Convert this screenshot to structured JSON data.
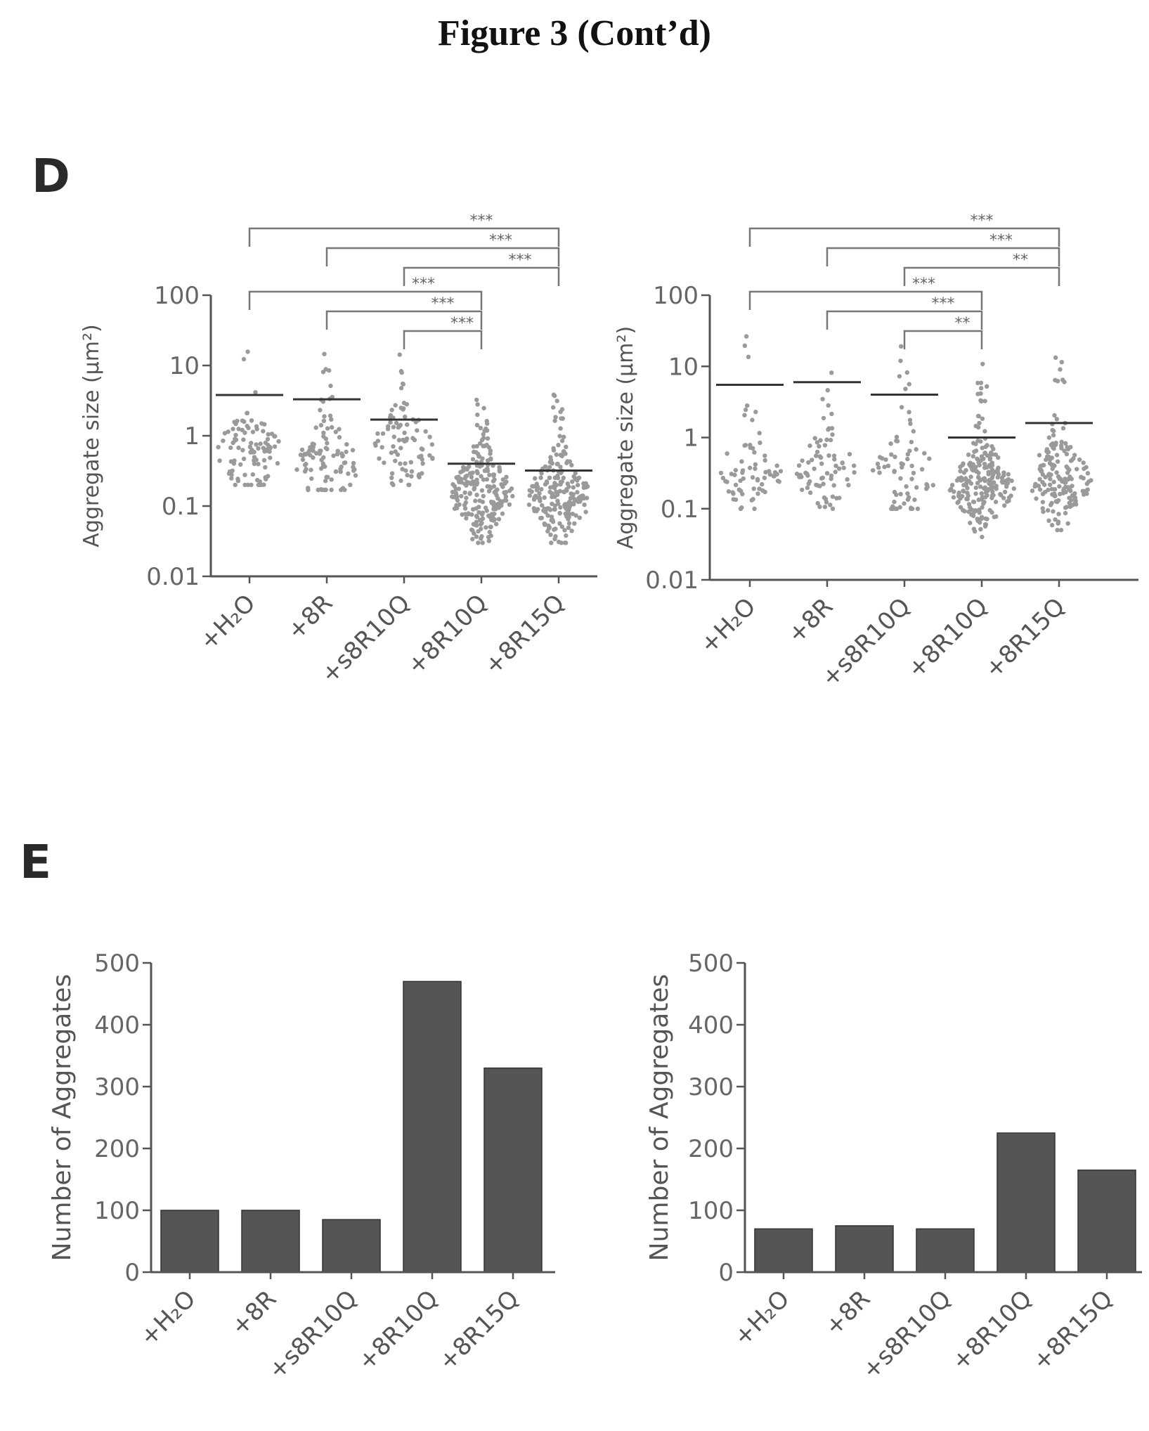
{
  "title": "Figure 3 (Cont’d)",
  "panel_labels": {
    "d": "D",
    "e": "E"
  },
  "chart_data": [
    {
      "id": "d-left",
      "type": "scatter",
      "panel": "D",
      "ylabel": "Aggregate size (µm²)",
      "yscale": "log",
      "ylim": [
        0.01,
        100
      ],
      "yticks": [
        {
          "value": 0.01,
          "label": "0.01"
        },
        {
          "value": 0.1,
          "label": "0.1"
        },
        {
          "value": 1,
          "label": "1"
        },
        {
          "value": 10,
          "label": "10"
        },
        {
          "value": 100,
          "label": "100"
        }
      ],
      "categories": [
        "+H₂O",
        "+8R",
        "+s8R10Q",
        "+8R10Q",
        "+8R15Q"
      ],
      "mean": [
        3.8,
        3.3,
        1.7,
        0.4,
        0.32
      ],
      "n_points": [
        100,
        100,
        85,
        470,
        330
      ],
      "center": [
        0.6,
        0.38,
        0.7,
        0.15,
        0.13
      ],
      "min": [
        0.2,
        0.17,
        0.2,
        0.03,
        0.03
      ],
      "max": [
        20,
        20,
        15,
        3.5,
        4
      ],
      "significance": [
        {
          "from": "+H₂O",
          "to": "+8R15Q",
          "label": "***"
        },
        {
          "from": "+8R",
          "to": "+8R15Q",
          "label": "***"
        },
        {
          "from": "+s8R10Q",
          "to": "+8R15Q",
          "label": "***"
        },
        {
          "from": "+H₂O",
          "to": "+8R10Q",
          "label": "***"
        },
        {
          "from": "+8R",
          "to": "+8R10Q",
          "label": "***"
        },
        {
          "from": "+s8R10Q",
          "to": "+8R10Q",
          "label": "***"
        }
      ]
    },
    {
      "id": "d-right",
      "type": "scatter",
      "panel": "D",
      "ylabel": "Aggregate size (µm²)",
      "yscale": "log",
      "ylim": [
        0.01,
        100
      ],
      "yticks": [
        {
          "value": 0.01,
          "label": "0.01"
        },
        {
          "value": 0.1,
          "label": "0.1"
        },
        {
          "value": 1,
          "label": "1"
        },
        {
          "value": 10,
          "label": "10"
        },
        {
          "value": 100,
          "label": "100"
        }
      ],
      "categories": [
        "+H₂O",
        "+8R",
        "+s8R10Q",
        "+8R10Q",
        "+8R15Q"
      ],
      "mean": [
        5.5,
        6,
        4,
        1,
        1.6
      ],
      "n_points": [
        70,
        75,
        70,
        225,
        165
      ],
      "center": [
        0.3,
        0.3,
        0.3,
        0.2,
        0.25
      ],
      "min": [
        0.1,
        0.1,
        0.1,
        0.04,
        0.05
      ],
      "max": [
        30,
        25,
        20,
        12,
        15
      ],
      "significance": [
        {
          "from": "+H₂O",
          "to": "+8R15Q",
          "label": "***"
        },
        {
          "from": "+8R",
          "to": "+8R15Q",
          "label": "***"
        },
        {
          "from": "+s8R10Q",
          "to": "+8R15Q",
          "label": "**"
        },
        {
          "from": "+H₂O",
          "to": "+8R10Q",
          "label": "***"
        },
        {
          "from": "+8R",
          "to": "+8R10Q",
          "label": "***"
        },
        {
          "from": "+s8R10Q",
          "to": "+8R10Q",
          "label": "**"
        }
      ]
    },
    {
      "id": "e-left",
      "type": "bar",
      "panel": "E",
      "ylabel": "Number of Aggregates",
      "ylim": [
        0,
        500
      ],
      "yticks": [
        {
          "value": 0,
          "label": "0"
        },
        {
          "value": 100,
          "label": "100"
        },
        {
          "value": 200,
          "label": "200"
        },
        {
          "value": 300,
          "label": "300"
        },
        {
          "value": 400,
          "label": "400"
        },
        {
          "value": 500,
          "label": "500"
        }
      ],
      "categories": [
        "+H₂O",
        "+8R",
        "+s8R10Q",
        "+8R10Q",
        "+8R15Q"
      ],
      "values": [
        100,
        100,
        85,
        470,
        330
      ]
    },
    {
      "id": "e-right",
      "type": "bar",
      "panel": "E",
      "ylabel": "Number of Aggregates",
      "ylim": [
        0,
        500
      ],
      "yticks": [
        {
          "value": 0,
          "label": "0"
        },
        {
          "value": 100,
          "label": "100"
        },
        {
          "value": 200,
          "label": "200"
        },
        {
          "value": 300,
          "label": "300"
        },
        {
          "value": 400,
          "label": "400"
        },
        {
          "value": 500,
          "label": "500"
        }
      ],
      "categories": [
        "+H₂O",
        "+8R",
        "+s8R10Q",
        "+8R10Q",
        "+8R15Q"
      ],
      "values": [
        70,
        75,
        70,
        225,
        165
      ]
    }
  ]
}
